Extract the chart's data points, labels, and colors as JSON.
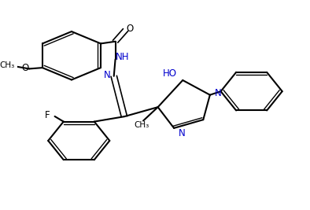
{
  "bg": "#ffffff",
  "line_color": "#000000",
  "line_color_blue": "#0000cd",
  "lw": 1.5,
  "lw_double": 1.2,
  "figsize": [
    3.94,
    2.67
  ],
  "dpi": 100,
  "labels": {
    "O_carbonyl": [
      0.515,
      0.88,
      "O"
    ],
    "NH": [
      0.435,
      0.695,
      "NH"
    ],
    "N_imine": [
      0.395,
      0.575,
      "N"
    ],
    "HO": [
      0.565,
      0.73,
      "HO"
    ],
    "N1_pyr": [
      0.645,
      0.575,
      "N"
    ],
    "N2_pyr": [
      0.62,
      0.38,
      "N"
    ],
    "F": [
      0.135,
      0.455,
      "F"
    ],
    "methoxy_O": [
      0.06,
      0.59,
      "O"
    ],
    "methoxy_CH3": [
      0.015,
      0.56,
      ""
    ],
    "methyl": [
      0.555,
      0.23,
      ""
    ],
    "CH3_label": [
      0.54,
      0.195,
      ""
    ]
  }
}
